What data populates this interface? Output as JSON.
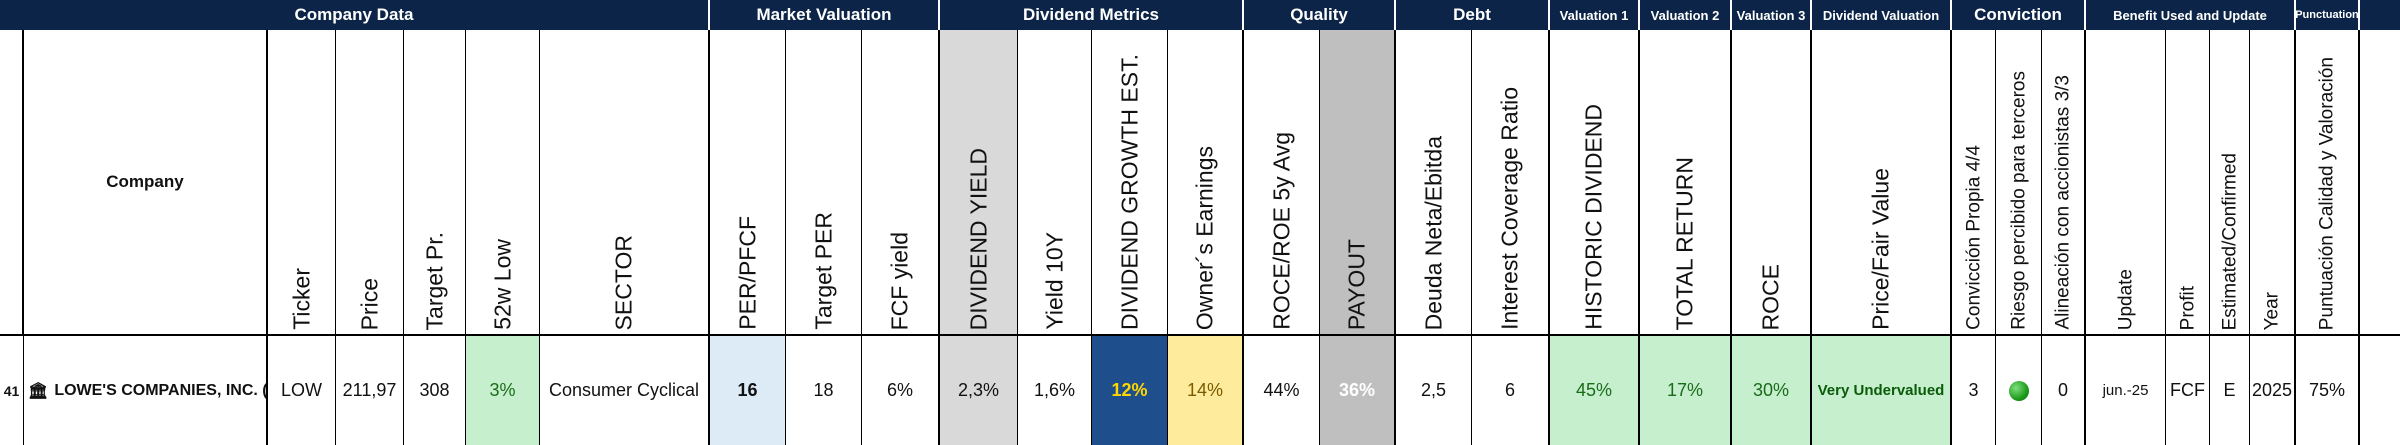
{
  "groups": {
    "company_data": "Company Data",
    "market_valuation": "Market Valuation",
    "dividend_metrics": "Dividend Metrics",
    "quality": "Quality",
    "debt": "Debt",
    "valuation1": "Valuation 1",
    "valuation2": "Valuation 2",
    "valuation3": "Valuation 3",
    "dividend_valuation": "Dividend Valuation",
    "conviction": "Conviction",
    "benefit": "Benefit Used and Update",
    "punctuation": "Punctuation"
  },
  "headers": {
    "company": "Company",
    "ticker": "Ticker",
    "price": "Price",
    "target_pr": "Target Pr.",
    "low52": "52w Low",
    "sector": "SECTOR",
    "per_pfcf": "PER/PFCF",
    "target_per": "Target PER",
    "fcf_yield": "FCF yield",
    "dividend_yield": "DIVIDEND YIELD",
    "yield10y": "Yield 10Y",
    "div_growth": "DIVIDEND GROWTH EST.",
    "owners_earnings": "Owner´s Earnings",
    "roce_roe": "ROCE/ROE 5y Avg",
    "payout": "PAYOUT",
    "deuda": "Deuda Neta/Ebitda",
    "interest": "Interest Coverage Ratio",
    "historic_div": "HISTORIC DIVIDEND",
    "total_return": "TOTAL RETURN",
    "roce": "ROCE",
    "price_fair": "Price/Fair Value",
    "conviccion": "Convicción Propia 4/4",
    "riesgo": "Riesgo percibido para terceros",
    "alineacion": "Alineación con accionistas 3/3",
    "update": "Update",
    "profit": "Profit",
    "estimated": "Estimated/Confirmed",
    "year": "Year",
    "puntuacion": "Puntuación Calidad y Valoración"
  },
  "row": {
    "row_number": "41",
    "company": "LOWE'S COMPANIES, INC. (XN",
    "ticker": "LOW",
    "price": "211,97",
    "target_pr": "308",
    "low52": "3%",
    "sector": "Consumer Cyclical",
    "per_pfcf": "16",
    "target_per": "18",
    "fcf_yield": "6%",
    "dividend_yield": "2,3%",
    "yield10y": "1,6%",
    "div_growth": "12%",
    "owners_earnings": "14%",
    "roce_roe": "44%",
    "payout": "36%",
    "deuda": "2,5",
    "interest": "6",
    "historic_div": "45%",
    "total_return": "17%",
    "roce": "30%",
    "price_fair": "Very Undervalued",
    "conviccion": "3",
    "riesgo_icon": "green-circle-icon",
    "alineacion": "0",
    "update": "jun.-25",
    "profit": "FCF",
    "estimated": "E",
    "year": "2025",
    "puntuacion": "75%"
  }
}
